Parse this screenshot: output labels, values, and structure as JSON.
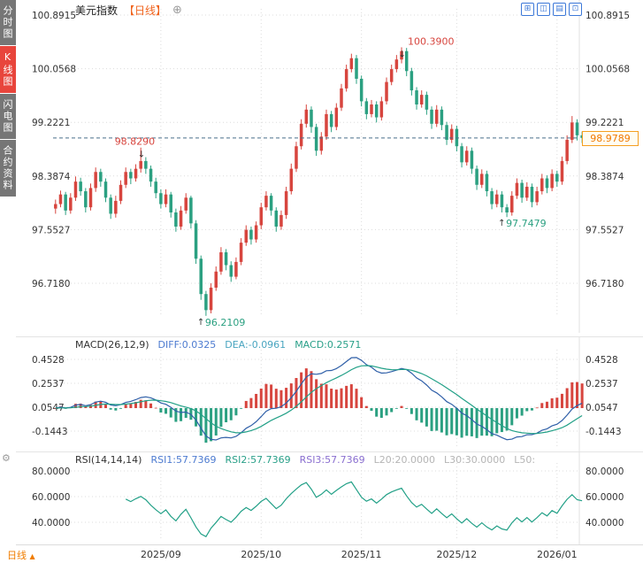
{
  "colors": {
    "up": "#d7453e",
    "down": "#2ba081",
    "grid": "#dcdcdc",
    "axis_text": "#333333",
    "diff_line": "#2f5fa8",
    "dea_line": "#22a087",
    "rsi_line": "#22a087",
    "current_line": "#4a6f8a",
    "accent_orange": "#f07d00",
    "tab_selected": "#e8453c",
    "toolbar_blue": "#3c78d8"
  },
  "sidebar": {
    "tabs": [
      {
        "label": "分时图",
        "selected": false
      },
      {
        "label": "K线图",
        "selected": true
      },
      {
        "label": "闪电图",
        "selected": false
      },
      {
        "label": "合约资料",
        "selected": false
      }
    ],
    "indicator_settings_icon": "⚙"
  },
  "header": {
    "symbol": "美元指数",
    "period_tag": "【日线】",
    "settings_icon": "⊕",
    "toolbar_icons": [
      {
        "name": "grid-layout-icon",
        "glyph": "⊞"
      },
      {
        "name": "split-layout-icon",
        "glyph": "◫"
      },
      {
        "name": "rows-layout-icon",
        "glyph": "▤"
      },
      {
        "name": "fullscreen-icon",
        "glyph": "⊡"
      }
    ]
  },
  "bottom_axis": {
    "period_selector": "日线",
    "period_selector_arrow": "▲",
    "month_labels": [
      "2025/09",
      "2025/10",
      "2025/11",
      "2025/12",
      "2026/01"
    ]
  },
  "chart_data": {
    "type": "candlestick",
    "title": "美元指数",
    "period": "日线",
    "price_axis": {
      "labels": [
        "100.8915",
        "100.0568",
        "99.2221",
        "98.3874",
        "97.5527",
        "96.7180"
      ],
      "max": 100.8915,
      "step": 0.8347
    },
    "current_price": "98.9789",
    "current_price_value": 98.9789,
    "month_tick_bars": [
      21,
      41,
      61,
      80,
      100
    ],
    "annotations": [
      {
        "text": "98.8290",
        "type": "high",
        "bar": 17,
        "price": 98.829,
        "color": "up",
        "text_side": "left"
      },
      {
        "text": "100.3900",
        "type": "high",
        "bar": 69,
        "price": 100.39,
        "color": "up",
        "text_side": "right"
      },
      {
        "text": "96.2109",
        "type": "low",
        "bar": 30,
        "price": 96.2109,
        "color": "down",
        "text_side": "right"
      },
      {
        "text": "97.7479",
        "type": "low",
        "bar": 90,
        "price": 97.7479,
        "color": "down",
        "text_side": "right"
      }
    ],
    "candles": [
      [
        97.88,
        98.02,
        97.8,
        97.95
      ],
      [
        97.95,
        98.16,
        97.9,
        98.1
      ],
      [
        98.1,
        98.14,
        97.78,
        97.85
      ],
      [
        97.85,
        98.12,
        97.8,
        98.05
      ],
      [
        98.05,
        98.38,
        98.0,
        98.3
      ],
      [
        98.3,
        98.36,
        98.08,
        98.15
      ],
      [
        98.15,
        98.2,
        97.82,
        97.9
      ],
      [
        97.9,
        98.27,
        97.85,
        98.2
      ],
      [
        98.2,
        98.52,
        98.14,
        98.45
      ],
      [
        98.45,
        98.5,
        98.22,
        98.3
      ],
      [
        98.3,
        98.35,
        97.98,
        98.05
      ],
      [
        98.05,
        98.1,
        97.72,
        97.8
      ],
      [
        97.8,
        98.08,
        97.74,
        98.0
      ],
      [
        98.0,
        98.32,
        97.95,
        98.25
      ],
      [
        98.25,
        98.52,
        98.2,
        98.45
      ],
      [
        98.45,
        98.5,
        98.26,
        98.35
      ],
      [
        98.35,
        98.57,
        98.3,
        98.5
      ],
      [
        98.5,
        98.829,
        98.44,
        98.62
      ],
      [
        98.62,
        98.68,
        98.42,
        98.5
      ],
      [
        98.5,
        98.55,
        98.22,
        98.3
      ],
      [
        98.3,
        98.36,
        98.04,
        98.12
      ],
      [
        98.12,
        98.18,
        97.88,
        97.95
      ],
      [
        97.95,
        98.18,
        97.9,
        98.1
      ],
      [
        98.1,
        98.14,
        97.74,
        97.82
      ],
      [
        97.82,
        97.88,
        97.52,
        97.6
      ],
      [
        97.6,
        97.92,
        97.55,
        97.85
      ],
      [
        97.85,
        98.12,
        97.8,
        98.05
      ],
      [
        98.05,
        98.08,
        97.57,
        97.65
      ],
      [
        97.65,
        97.7,
        97.02,
        97.1
      ],
      [
        97.1,
        97.15,
        96.46,
        96.55
      ],
      [
        96.55,
        96.6,
        96.2109,
        96.3
      ],
      [
        96.3,
        96.72,
        96.25,
        96.65
      ],
      [
        96.65,
        96.98,
        96.6,
        96.9
      ],
      [
        96.9,
        97.28,
        96.85,
        97.2
      ],
      [
        97.2,
        97.25,
        96.92,
        97.0
      ],
      [
        97.0,
        97.06,
        96.74,
        96.82
      ],
      [
        96.82,
        97.12,
        96.78,
        97.05
      ],
      [
        97.05,
        97.42,
        97.0,
        97.35
      ],
      [
        97.35,
        97.62,
        97.3,
        97.55
      ],
      [
        97.55,
        97.6,
        97.32,
        97.4
      ],
      [
        97.4,
        97.68,
        97.35,
        97.62
      ],
      [
        97.62,
        97.97,
        97.56,
        97.9
      ],
      [
        97.9,
        98.15,
        97.85,
        98.08
      ],
      [
        98.08,
        98.12,
        97.77,
        97.85
      ],
      [
        97.85,
        97.9,
        97.52,
        97.6
      ],
      [
        97.6,
        97.85,
        97.55,
        97.78
      ],
      [
        97.78,
        98.22,
        97.72,
        98.15
      ],
      [
        98.15,
        98.58,
        98.1,
        98.5
      ],
      [
        98.5,
        98.92,
        98.45,
        98.85
      ],
      [
        98.85,
        99.27,
        98.8,
        99.2
      ],
      [
        99.2,
        99.5,
        99.14,
        99.42
      ],
      [
        99.42,
        99.47,
        99.06,
        99.15
      ],
      [
        99.15,
        99.2,
        98.7,
        98.78
      ],
      [
        98.78,
        99.07,
        98.72,
        99.0
      ],
      [
        99.0,
        99.42,
        98.95,
        99.35
      ],
      [
        99.35,
        99.4,
        99.07,
        99.15
      ],
      [
        99.15,
        99.52,
        99.1,
        99.45
      ],
      [
        99.45,
        99.82,
        99.4,
        99.75
      ],
      [
        99.75,
        100.12,
        99.7,
        100.05
      ],
      [
        100.05,
        100.29,
        100.0,
        100.22
      ],
      [
        100.22,
        100.27,
        99.82,
        99.9
      ],
      [
        99.9,
        99.95,
        99.47,
        99.55
      ],
      [
        99.55,
        99.6,
        99.27,
        99.35
      ],
      [
        99.35,
        99.57,
        99.3,
        99.5
      ],
      [
        99.5,
        99.55,
        99.22,
        99.3
      ],
      [
        99.3,
        99.62,
        99.25,
        99.55
      ],
      [
        99.55,
        99.92,
        99.5,
        99.85
      ],
      [
        99.85,
        100.12,
        99.8,
        100.05
      ],
      [
        100.05,
        100.27,
        100.0,
        100.2
      ],
      [
        100.2,
        100.39,
        100.14,
        100.33
      ],
      [
        100.33,
        100.38,
        99.94,
        100.02
      ],
      [
        100.02,
        100.07,
        99.64,
        99.72
      ],
      [
        99.72,
        99.77,
        99.42,
        99.5
      ],
      [
        99.5,
        99.72,
        99.45,
        99.65
      ],
      [
        99.65,
        99.7,
        99.34,
        99.42
      ],
      [
        99.42,
        99.47,
        99.12,
        99.2
      ],
      [
        99.2,
        99.49,
        99.15,
        99.42
      ],
      [
        99.42,
        99.47,
        99.1,
        99.18
      ],
      [
        99.18,
        99.23,
        98.87,
        98.95
      ],
      [
        98.95,
        99.19,
        98.9,
        99.12
      ],
      [
        99.12,
        99.17,
        98.77,
        98.85
      ],
      [
        98.85,
        98.9,
        98.52,
        98.6
      ],
      [
        98.6,
        98.85,
        98.55,
        98.78
      ],
      [
        98.78,
        98.83,
        98.42,
        98.5
      ],
      [
        98.5,
        98.55,
        98.17,
        98.25
      ],
      [
        98.25,
        98.49,
        98.2,
        98.42
      ],
      [
        98.42,
        98.47,
        98.07,
        98.15
      ],
      [
        98.15,
        98.2,
        97.87,
        97.95
      ],
      [
        97.95,
        98.17,
        97.9,
        98.1
      ],
      [
        98.1,
        98.15,
        97.82,
        97.9
      ],
      [
        97.9,
        97.95,
        97.7479,
        97.82
      ],
      [
        97.82,
        98.15,
        97.77,
        98.08
      ],
      [
        98.08,
        98.35,
        98.03,
        98.28
      ],
      [
        98.28,
        98.33,
        97.97,
        98.05
      ],
      [
        98.05,
        98.29,
        98.0,
        98.22
      ],
      [
        98.22,
        98.27,
        97.9,
        97.98
      ],
      [
        97.98,
        98.22,
        97.93,
        98.15
      ],
      [
        98.15,
        98.42,
        98.1,
        98.35
      ],
      [
        98.35,
        98.4,
        98.12,
        98.2
      ],
      [
        98.2,
        98.49,
        98.15,
        98.42
      ],
      [
        98.42,
        98.47,
        98.22,
        98.3
      ],
      [
        98.3,
        98.69,
        98.25,
        98.62
      ],
      [
        98.62,
        99.02,
        98.57,
        98.95
      ],
      [
        98.95,
        99.32,
        98.9,
        99.22
      ],
      [
        99.22,
        99.27,
        98.94,
        99.02
      ],
      [
        99.02,
        99.08,
        98.9,
        98.9789
      ]
    ],
    "macd": {
      "title": "MACD(26,12,9)",
      "params": [
        26,
        12,
        9
      ],
      "diff": "DIFF:0.0325",
      "dea": "DEA:-0.0961",
      "macd": "MACD:0.2571",
      "axis_labels": [
        "0.4528",
        "0.2537",
        "0.0547",
        "-0.1443"
      ]
    },
    "rsi": {
      "title": "RSI(14,14,14)",
      "params": [
        14,
        14,
        14
      ],
      "rsi1": "RSI1:57.7369",
      "rsi2": "RSI2:57.7369",
      "rsi3": "RSI3:57.7369",
      "l20": "L20:20.0000",
      "l30": "L30:30.0000",
      "l50": "L50:",
      "axis_labels": [
        "80.0000",
        "60.0000",
        "40.0000"
      ],
      "axis_values": [
        80,
        60,
        40
      ]
    }
  }
}
